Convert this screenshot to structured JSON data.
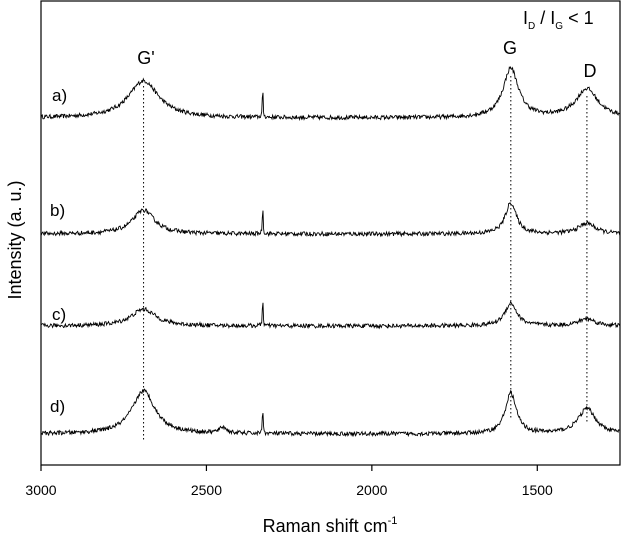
{
  "chart_data": {
    "type": "line",
    "title": "",
    "xlabel": "Raman shift cm",
    "xlabel_sup": "-1",
    "ylabel": "Intensity (a. u.)",
    "xlim": [
      3000,
      1250
    ],
    "x_reversed": true,
    "x_ticks": [
      3000,
      2500,
      2000,
      1500
    ],
    "y_ticks_shown": false,
    "grid": false,
    "peaks": [
      {
        "name": "G'",
        "x": 2690
      },
      {
        "name": "G",
        "x": 1580
      },
      {
        "name": "D",
        "x": 1350
      }
    ],
    "ratio_annotation": {
      "i1": "I",
      "sub1": "D",
      "sep": " / ",
      "i2": "I",
      "sub2": "G",
      "rest": " < 1"
    },
    "series": [
      {
        "name": "a)",
        "baseline": 1.0,
        "peaks": [
          {
            "x": 2690,
            "height": 0.62,
            "width": 55
          },
          {
            "x": 1580,
            "height": 0.82,
            "width": 28
          },
          {
            "x": 1350,
            "height": 0.48,
            "width": 40
          },
          {
            "x": 2330,
            "height": 0.55,
            "width": 1.2
          }
        ]
      },
      {
        "name": "b)",
        "baseline": 1.0,
        "peaks": [
          {
            "x": 2690,
            "height": 0.4,
            "width": 40
          },
          {
            "x": 1580,
            "height": 0.52,
            "width": 20
          },
          {
            "x": 1350,
            "height": 0.18,
            "width": 30
          },
          {
            "x": 2330,
            "height": 0.55,
            "width": 1.2
          }
        ]
      },
      {
        "name": "c)",
        "baseline": 1.0,
        "peaks": [
          {
            "x": 2690,
            "height": 0.28,
            "width": 45
          },
          {
            "x": 1580,
            "height": 0.38,
            "width": 22
          },
          {
            "x": 1350,
            "height": 0.12,
            "width": 30
          },
          {
            "x": 2330,
            "height": 0.55,
            "width": 1.2
          }
        ]
      },
      {
        "name": "d)",
        "baseline": 1.0,
        "peaks": [
          {
            "x": 2690,
            "height": 0.72,
            "width": 42
          },
          {
            "x": 1580,
            "height": 0.68,
            "width": 20
          },
          {
            "x": 1350,
            "height": 0.42,
            "width": 32
          },
          {
            "x": 2330,
            "height": 0.55,
            "width": 1.2
          },
          {
            "x": 2450,
            "height": 0.1,
            "width": 12
          }
        ]
      }
    ]
  }
}
